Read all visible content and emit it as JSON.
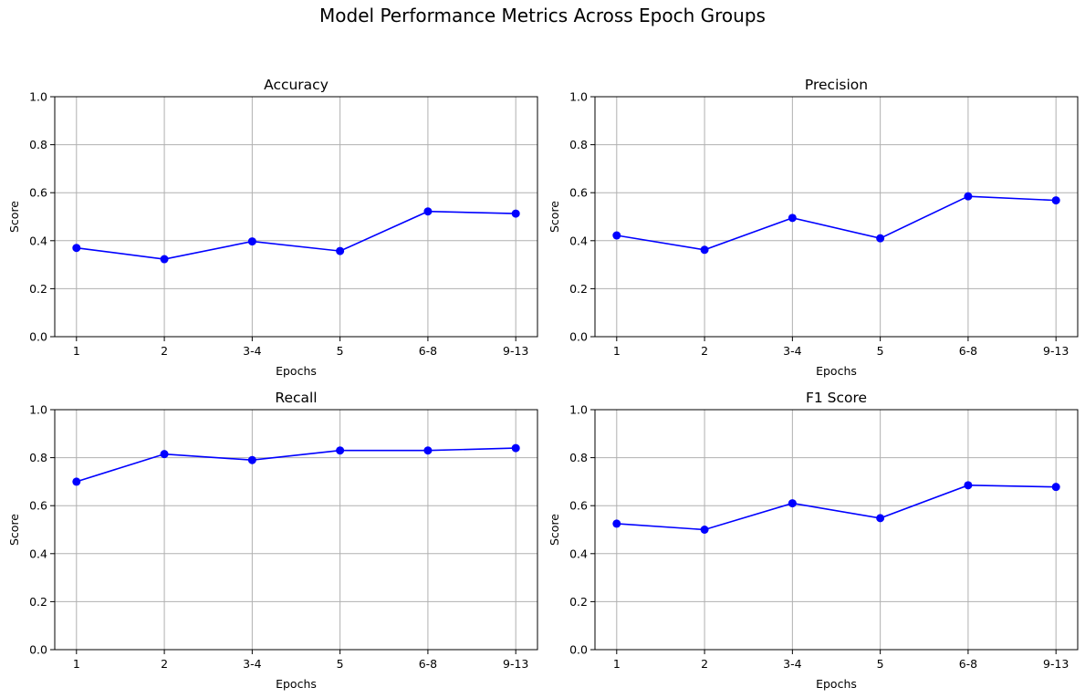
{
  "figure": {
    "title": "Model Performance Metrics Across Epoch Groups"
  },
  "colors": {
    "line": "#0000ff",
    "grid": "#b0b0b0",
    "axes": "#000000"
  },
  "chart_data": [
    {
      "type": "line",
      "title": "Accuracy",
      "xlabel": "Epochs",
      "ylabel": "Score",
      "categories": [
        "1",
        "2",
        "3-4",
        "5",
        "6-8",
        "9-13"
      ],
      "values": [
        0.37,
        0.323,
        0.397,
        0.357,
        0.522,
        0.513
      ],
      "ylim": [
        0,
        1
      ],
      "yticks": [
        "0.0",
        "0.2",
        "0.4",
        "0.6",
        "0.8",
        "1.0"
      ],
      "grid": true,
      "marker": "circle"
    },
    {
      "type": "line",
      "title": "Precision",
      "xlabel": "Epochs",
      "ylabel": "Score",
      "categories": [
        "1",
        "2",
        "3-4",
        "5",
        "6-8",
        "9-13"
      ],
      "values": [
        0.422,
        0.362,
        0.495,
        0.41,
        0.585,
        0.568
      ],
      "ylim": [
        0,
        1
      ],
      "yticks": [
        "0.0",
        "0.2",
        "0.4",
        "0.6",
        "0.8",
        "1.0"
      ],
      "grid": true,
      "marker": "circle"
    },
    {
      "type": "line",
      "title": "Recall",
      "xlabel": "Epochs",
      "ylabel": "Score",
      "categories": [
        "1",
        "2",
        "3-4",
        "5",
        "6-8",
        "9-13"
      ],
      "values": [
        0.7,
        0.815,
        0.79,
        0.83,
        0.83,
        0.84
      ],
      "ylim": [
        0,
        1
      ],
      "yticks": [
        "0.0",
        "0.2",
        "0.4",
        "0.6",
        "0.8",
        "1.0"
      ],
      "grid": true,
      "marker": "circle"
    },
    {
      "type": "line",
      "title": "F1 Score",
      "xlabel": "Epochs",
      "ylabel": "Score",
      "categories": [
        "1",
        "2",
        "3-4",
        "5",
        "6-8",
        "9-13"
      ],
      "values": [
        0.525,
        0.5,
        0.61,
        0.548,
        0.685,
        0.678
      ],
      "ylim": [
        0,
        1
      ],
      "yticks": [
        "0.0",
        "0.2",
        "0.4",
        "0.6",
        "0.8",
        "1.0"
      ],
      "grid": true,
      "marker": "circle"
    }
  ]
}
